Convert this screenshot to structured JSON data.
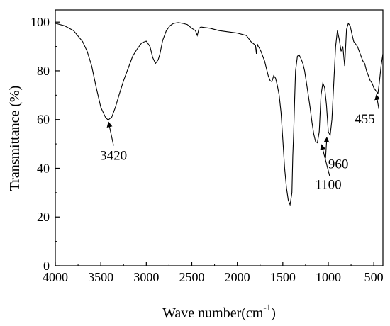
{
  "chart_data": {
    "type": "line",
    "title": "",
    "xlabel": {
      "base": "Wave number(cm",
      "sup": "-1",
      "close": ")"
    },
    "ylabel": "Transmittance (%)",
    "xlim": [
      4000,
      400
    ],
    "ylim": [
      0,
      105
    ],
    "xticks": [
      4000,
      3500,
      3000,
      2500,
      2000,
      1500,
      1000,
      500
    ],
    "yticks": [
      0,
      20,
      40,
      60,
      80,
      100
    ],
    "grid": false,
    "legend": "none",
    "line_color": "#000000",
    "series": [
      {
        "x": [
          4000,
          3900,
          3800,
          3700,
          3650,
          3600,
          3550,
          3500,
          3450,
          3420,
          3380,
          3340,
          3300,
          3250,
          3200,
          3150,
          3100,
          3050,
          3000,
          2960,
          2930,
          2900,
          2870,
          2850,
          2820,
          2780,
          2740,
          2700,
          2650,
          2600,
          2550,
          2500,
          2460,
          2440,
          2420,
          2400,
          2360,
          2300,
          2200,
          2100,
          2000,
          1900,
          1850,
          1800,
          1790,
          1780,
          1770,
          1760,
          1740,
          1720,
          1700,
          1680,
          1660,
          1640,
          1620,
          1600,
          1580,
          1560,
          1540,
          1520,
          1500,
          1480,
          1460,
          1440,
          1420,
          1400,
          1390,
          1380,
          1370,
          1360,
          1340,
          1320,
          1300,
          1280,
          1260,
          1240,
          1220,
          1200,
          1180,
          1160,
          1140,
          1120,
          1100,
          1080,
          1060,
          1040,
          1020,
          1000,
          980,
          960,
          940,
          920,
          900,
          880,
          860,
          840,
          820,
          800,
          780,
          760,
          740,
          720,
          700,
          680,
          660,
          640,
          620,
          600,
          580,
          560,
          540,
          520,
          500,
          480,
          460,
          455,
          440,
          420,
          400
        ],
        "y": [
          99.5,
          98.5,
          96.5,
          92,
          88,
          82,
          73,
          65,
          61,
          59.8,
          61,
          65,
          70,
          76,
          81,
          86,
          89,
          91.5,
          92.2,
          90,
          85.5,
          83,
          84.5,
          87,
          92.5,
          96.5,
          98.5,
          99.5,
          99.8,
          99.5,
          99,
          97.5,
          96.5,
          94.5,
          97.5,
          98,
          97.8,
          97.5,
          96.5,
          96,
          95.5,
          94.5,
          92,
          90.5,
          87,
          91,
          90,
          89.5,
          88,
          86,
          84,
          81,
          78,
          76,
          75.5,
          78,
          77,
          74,
          70,
          63,
          52,
          40,
          32,
          27,
          25,
          30,
          45,
          55,
          68,
          80,
          86,
          86.5,
          85,
          83,
          80,
          75,
          70,
          65,
          59,
          54,
          51,
          50.5,
          55,
          70,
          75,
          73,
          66,
          55,
          53.5,
          60,
          75,
          90,
          96.5,
          93,
          88,
          90,
          82,
          97,
          99.5,
          98.5,
          95,
          92,
          91,
          90,
          88,
          86,
          84,
          83,
          80,
          78,
          76,
          75,
          73,
          72,
          71,
          70.5,
          75,
          82,
          87
        ]
      }
    ],
    "annotations": [
      {
        "text": "3420",
        "x": 3420,
        "y": 59.8,
        "text_x": 3360,
        "text_y": 43.5
      },
      {
        "text": "1100",
        "x": 1080,
        "y": 50.5,
        "text_x": 1000,
        "text_y": 31.5
      },
      {
        "text": "960",
        "x": 1015,
        "y": 53.5,
        "text_x": 890,
        "text_y": 40
      },
      {
        "text": "455",
        "x": 475,
        "y": 71,
        "text_x": 600,
        "text_y": 58.5
      }
    ]
  }
}
